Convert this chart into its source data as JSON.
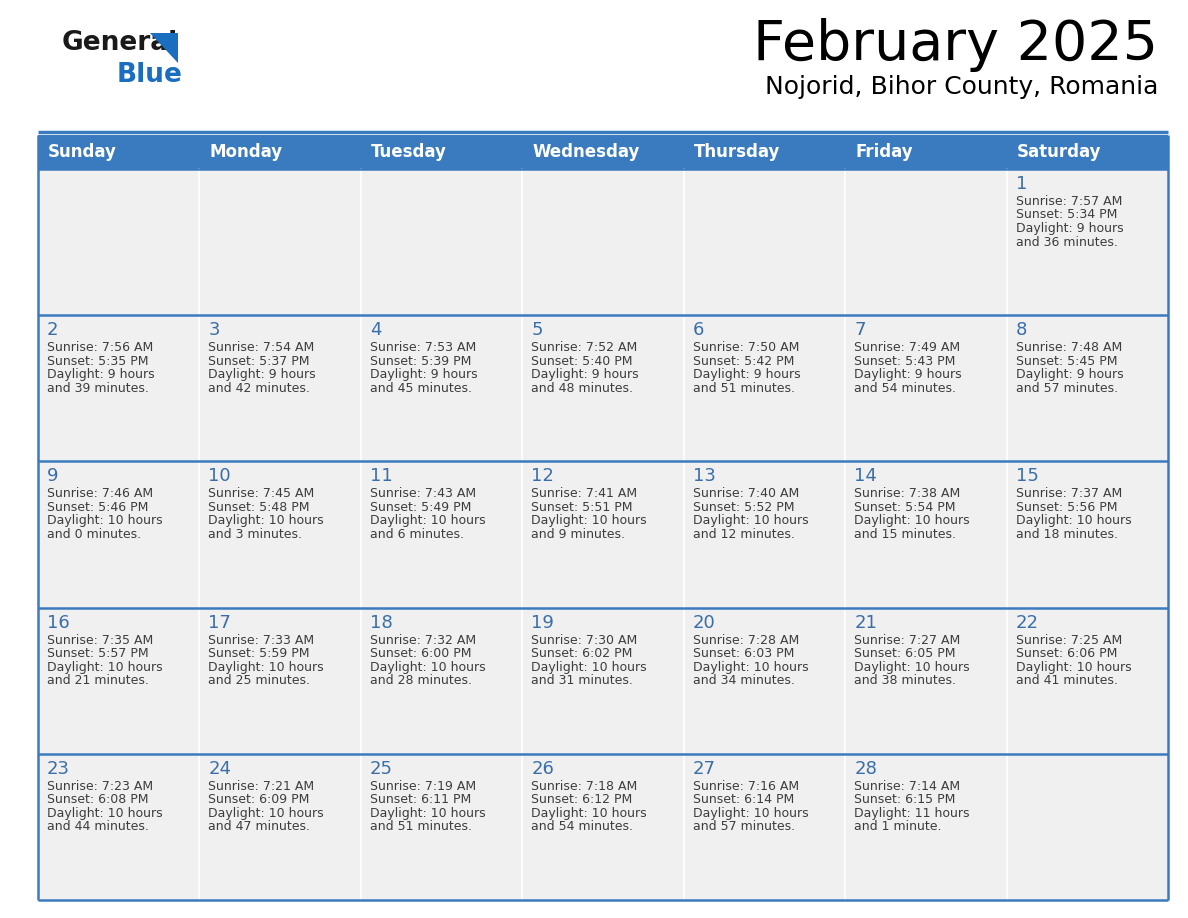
{
  "title": "February 2025",
  "subtitle": "Nojorid, Bihor County, Romania",
  "header_bg": "#3a7abf",
  "header_text": "#ffffff",
  "cell_bg": "#f0f0f0",
  "cell_bg_white": "#ffffff",
  "border_color": "#3a7abf",
  "day_number_color": "#3a6ea8",
  "cell_text_color": "#3d3d3d",
  "days_of_week": [
    "Sunday",
    "Monday",
    "Tuesday",
    "Wednesday",
    "Thursday",
    "Friday",
    "Saturday"
  ],
  "weeks": [
    [
      {
        "day": null,
        "sunrise": null,
        "sunset": null,
        "daylight": null
      },
      {
        "day": null,
        "sunrise": null,
        "sunset": null,
        "daylight": null
      },
      {
        "day": null,
        "sunrise": null,
        "sunset": null,
        "daylight": null
      },
      {
        "day": null,
        "sunrise": null,
        "sunset": null,
        "daylight": null
      },
      {
        "day": null,
        "sunrise": null,
        "sunset": null,
        "daylight": null
      },
      {
        "day": null,
        "sunrise": null,
        "sunset": null,
        "daylight": null
      },
      {
        "day": 1,
        "sunrise": "7:57 AM",
        "sunset": "5:34 PM",
        "daylight": "9 hours\nand 36 minutes."
      }
    ],
    [
      {
        "day": 2,
        "sunrise": "7:56 AM",
        "sunset": "5:35 PM",
        "daylight": "9 hours\nand 39 minutes."
      },
      {
        "day": 3,
        "sunrise": "7:54 AM",
        "sunset": "5:37 PM",
        "daylight": "9 hours\nand 42 minutes."
      },
      {
        "day": 4,
        "sunrise": "7:53 AM",
        "sunset": "5:39 PM",
        "daylight": "9 hours\nand 45 minutes."
      },
      {
        "day": 5,
        "sunrise": "7:52 AM",
        "sunset": "5:40 PM",
        "daylight": "9 hours\nand 48 minutes."
      },
      {
        "day": 6,
        "sunrise": "7:50 AM",
        "sunset": "5:42 PM",
        "daylight": "9 hours\nand 51 minutes."
      },
      {
        "day": 7,
        "sunrise": "7:49 AM",
        "sunset": "5:43 PM",
        "daylight": "9 hours\nand 54 minutes."
      },
      {
        "day": 8,
        "sunrise": "7:48 AM",
        "sunset": "5:45 PM",
        "daylight": "9 hours\nand 57 minutes."
      }
    ],
    [
      {
        "day": 9,
        "sunrise": "7:46 AM",
        "sunset": "5:46 PM",
        "daylight": "10 hours\nand 0 minutes."
      },
      {
        "day": 10,
        "sunrise": "7:45 AM",
        "sunset": "5:48 PM",
        "daylight": "10 hours\nand 3 minutes."
      },
      {
        "day": 11,
        "sunrise": "7:43 AM",
        "sunset": "5:49 PM",
        "daylight": "10 hours\nand 6 minutes."
      },
      {
        "day": 12,
        "sunrise": "7:41 AM",
        "sunset": "5:51 PM",
        "daylight": "10 hours\nand 9 minutes."
      },
      {
        "day": 13,
        "sunrise": "7:40 AM",
        "sunset": "5:52 PM",
        "daylight": "10 hours\nand 12 minutes."
      },
      {
        "day": 14,
        "sunrise": "7:38 AM",
        "sunset": "5:54 PM",
        "daylight": "10 hours\nand 15 minutes."
      },
      {
        "day": 15,
        "sunrise": "7:37 AM",
        "sunset": "5:56 PM",
        "daylight": "10 hours\nand 18 minutes."
      }
    ],
    [
      {
        "day": 16,
        "sunrise": "7:35 AM",
        "sunset": "5:57 PM",
        "daylight": "10 hours\nand 21 minutes."
      },
      {
        "day": 17,
        "sunrise": "7:33 AM",
        "sunset": "5:59 PM",
        "daylight": "10 hours\nand 25 minutes."
      },
      {
        "day": 18,
        "sunrise": "7:32 AM",
        "sunset": "6:00 PM",
        "daylight": "10 hours\nand 28 minutes."
      },
      {
        "day": 19,
        "sunrise": "7:30 AM",
        "sunset": "6:02 PM",
        "daylight": "10 hours\nand 31 minutes."
      },
      {
        "day": 20,
        "sunrise": "7:28 AM",
        "sunset": "6:03 PM",
        "daylight": "10 hours\nand 34 minutes."
      },
      {
        "day": 21,
        "sunrise": "7:27 AM",
        "sunset": "6:05 PM",
        "daylight": "10 hours\nand 38 minutes."
      },
      {
        "day": 22,
        "sunrise": "7:25 AM",
        "sunset": "6:06 PM",
        "daylight": "10 hours\nand 41 minutes."
      }
    ],
    [
      {
        "day": 23,
        "sunrise": "7:23 AM",
        "sunset": "6:08 PM",
        "daylight": "10 hours\nand 44 minutes."
      },
      {
        "day": 24,
        "sunrise": "7:21 AM",
        "sunset": "6:09 PM",
        "daylight": "10 hours\nand 47 minutes."
      },
      {
        "day": 25,
        "sunrise": "7:19 AM",
        "sunset": "6:11 PM",
        "daylight": "10 hours\nand 51 minutes."
      },
      {
        "day": 26,
        "sunrise": "7:18 AM",
        "sunset": "6:12 PM",
        "daylight": "10 hours\nand 54 minutes."
      },
      {
        "day": 27,
        "sunrise": "7:16 AM",
        "sunset": "6:14 PM",
        "daylight": "10 hours\nand 57 minutes."
      },
      {
        "day": 28,
        "sunrise": "7:14 AM",
        "sunset": "6:15 PM",
        "daylight": "11 hours\nand 1 minute."
      },
      {
        "day": null,
        "sunrise": null,
        "sunset": null,
        "daylight": null
      }
    ]
  ],
  "logo_general_color": "#1a1a1a",
  "logo_blue_color": "#1a6ec0",
  "logo_triangle_color": "#1a6ec0",
  "title_fontsize": 40,
  "subtitle_fontsize": 18,
  "header_fontsize": 12,
  "day_number_fontsize": 13,
  "cell_fontsize": 9
}
